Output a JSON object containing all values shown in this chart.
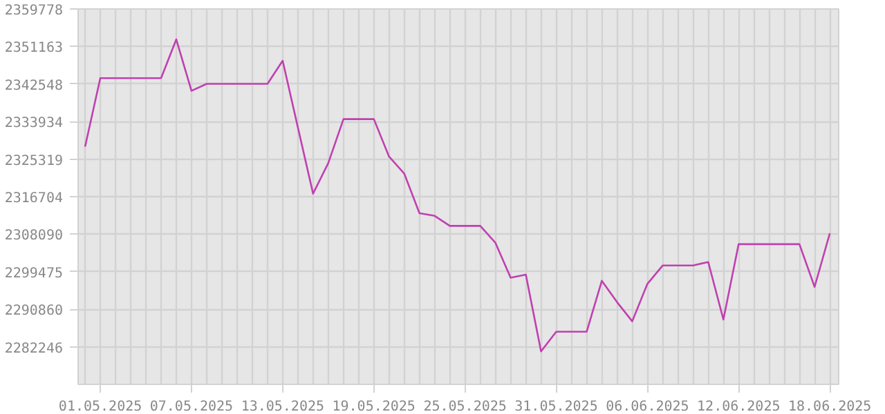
{
  "chart_data": {
    "type": "line",
    "grid": true,
    "marker": "none",
    "line_style": "solid",
    "x": [
      "2025-04-30",
      "2025-05-01",
      "2025-05-02",
      "2025-05-03",
      "2025-05-04",
      "2025-05-05",
      "2025-05-06",
      "2025-05-07",
      "2025-05-08",
      "2025-05-09",
      "2025-05-10",
      "2025-05-11",
      "2025-05-12",
      "2025-05-13",
      "2025-05-14",
      "2025-05-15",
      "2025-05-16",
      "2025-05-17",
      "2025-05-18",
      "2025-05-19",
      "2025-05-20",
      "2025-05-21",
      "2025-05-22",
      "2025-05-23",
      "2025-05-24",
      "2025-05-25",
      "2025-05-26",
      "2025-05-27",
      "2025-05-28",
      "2025-05-29",
      "2025-05-30",
      "2025-05-31",
      "2025-06-01",
      "2025-06-02",
      "2025-06-03",
      "2025-06-04",
      "2025-06-05",
      "2025-06-06",
      "2025-06-07",
      "2025-06-08",
      "2025-06-09",
      "2025-06-10",
      "2025-06-11",
      "2025-06-12",
      "2025-06-13",
      "2025-06-14",
      "2025-06-15",
      "2025-06-16",
      "2025-06-17",
      "2025-06-18"
    ],
    "series": [
      {
        "color": "#c040b0",
        "values": [
          2328200,
          2343900,
          2343900,
          2343900,
          2343900,
          2343900,
          2352800,
          2341000,
          2342600,
          2342600,
          2342600,
          2342600,
          2342600,
          2347900,
          2332600,
          2317400,
          2324400,
          2334500,
          2334500,
          2334500,
          2325900,
          2322000,
          2312900,
          2312300,
          2310000,
          2310000,
          2310000,
          2306100,
          2298100,
          2298800,
          2281200,
          2285700,
          2285700,
          2285700,
          2297400,
          2292500,
          2288100,
          2296700,
          2300900,
          2300900,
          2300900,
          2301700,
          2288500,
          2305800,
          2305800,
          2305800,
          2305800,
          2305800,
          2296000,
          2308300
        ]
      }
    ],
    "xlim": [
      "2025-04-29T13:00",
      "2025-06-18T14:00"
    ],
    "xticks": [
      {
        "value": "2025-05-01",
        "label": "01.05.2025"
      },
      {
        "value": "2025-05-07",
        "label": "07.05.2025"
      },
      {
        "value": "2025-05-13",
        "label": "13.05.2025"
      },
      {
        "value": "2025-05-19",
        "label": "19.05.2025"
      },
      {
        "value": "2025-05-25",
        "label": "25.05.2025"
      },
      {
        "value": "2025-05-31",
        "label": "31.05.2025"
      },
      {
        "value": "2025-06-06",
        "label": "06.06.2025"
      },
      {
        "value": "2025-06-12",
        "label": "12.06.2025"
      },
      {
        "value": "2025-06-18",
        "label": "18.06.2025"
      }
    ],
    "ylim": [
      2273631,
      2359778
    ],
    "yticks": [
      2282246,
      2290860,
      2299475,
      2308090,
      2316704,
      2325319,
      2333934,
      2342548,
      2351163,
      2359778
    ]
  }
}
